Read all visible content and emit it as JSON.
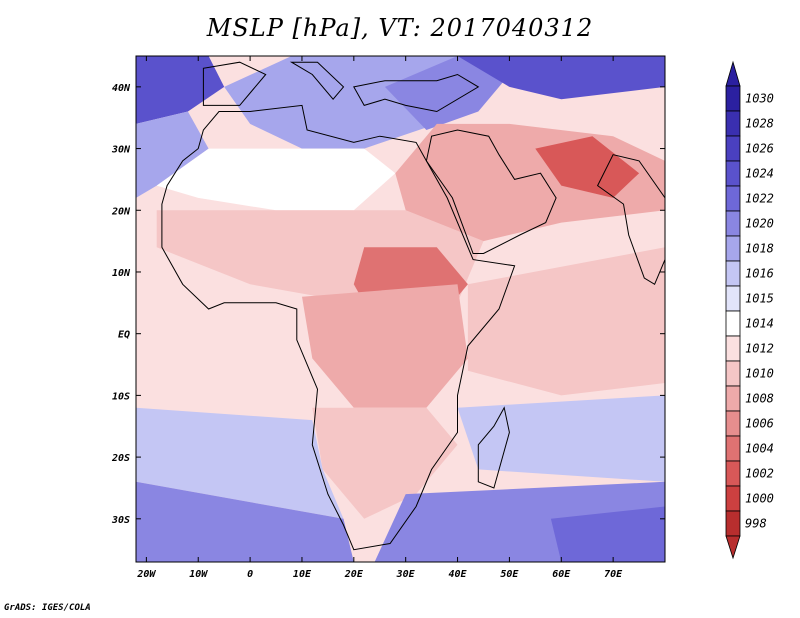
{
  "title": "MSLP [hPa], VT: 2017040312",
  "credit": "GrADS: IGES/COLA",
  "map": {
    "projection": "latlon",
    "lon_range": [
      -22,
      80
    ],
    "lat_range": [
      -37,
      45
    ],
    "field": "Mean sea level pressure",
    "units": "hPa",
    "lat_ticks": [
      {
        "lat": 40,
        "label": "40N"
      },
      {
        "lat": 30,
        "label": "30N"
      },
      {
        "lat": 20,
        "label": "20N"
      },
      {
        "lat": 10,
        "label": "10N"
      },
      {
        "lat": 0,
        "label": "EQ"
      },
      {
        "lat": -10,
        "label": "10S"
      },
      {
        "lat": -20,
        "label": "20S"
      },
      {
        "lat": -30,
        "label": "30S"
      }
    ],
    "lon_ticks": [
      {
        "lon": -20,
        "label": "20W"
      },
      {
        "lon": -10,
        "label": "10W"
      },
      {
        "lon": 0,
        "label": "0"
      },
      {
        "lon": 10,
        "label": "10E"
      },
      {
        "lon": 20,
        "label": "20E"
      },
      {
        "lon": 30,
        "label": "30E"
      },
      {
        "lon": 40,
        "label": "40E"
      },
      {
        "lon": 50,
        "label": "50E"
      },
      {
        "lon": 60,
        "label": "60E"
      },
      {
        "lon": 70,
        "label": "70E"
      }
    ]
  },
  "colorbar": {
    "levels": [
      {
        "label": "1030",
        "color": "#2b20a0"
      },
      {
        "label": "1028",
        "color": "#3a2fb0"
      },
      {
        "label": "1026",
        "color": "#4a40c0"
      },
      {
        "label": "1024",
        "color": "#5a52cc"
      },
      {
        "label": "1022",
        "color": "#6e68d8"
      },
      {
        "label": "1020",
        "color": "#8a86e2"
      },
      {
        "label": "1018",
        "color": "#a6a6ec"
      },
      {
        "label": "1016",
        "color": "#c4c6f4"
      },
      {
        "label": "1015",
        "color": "#e2e4fa"
      },
      {
        "label": "1014",
        "color": "#ffffff"
      },
      {
        "label": "1012",
        "color": "#fbe0e0"
      },
      {
        "label": "1010",
        "color": "#f5c6c6"
      },
      {
        "label": "1008",
        "color": "#eeaaaa"
      },
      {
        "label": "1006",
        "color": "#e68e8e"
      },
      {
        "label": "1004",
        "color": "#df7272"
      },
      {
        "label": "1002",
        "color": "#d85858"
      },
      {
        "label": "1000",
        "color": "#cc4040"
      },
      {
        "label": "998",
        "color": "#b82e2e"
      }
    ],
    "top_arrow_color": "#2b20a0",
    "bottom_arrow_color": "#b82e2e"
  },
  "regions": [
    {
      "name": "north-atlantic-high",
      "color": "#5a52cc",
      "points": [
        [
          -22,
          45
        ],
        [
          -8,
          45
        ],
        [
          -5,
          40
        ],
        [
          -12,
          36
        ],
        [
          -22,
          34
        ]
      ]
    },
    {
      "name": "atlantic-ridge",
      "color": "#a6a6ec",
      "points": [
        [
          -22,
          34
        ],
        [
          -12,
          36
        ],
        [
          -8,
          30
        ],
        [
          -18,
          24
        ],
        [
          -22,
          22
        ]
      ]
    },
    {
      "name": "mediterranean-high",
      "color": "#a6a6ec",
      "points": [
        [
          -5,
          40
        ],
        [
          8,
          45
        ],
        [
          40,
          45
        ],
        [
          36,
          34
        ],
        [
          22,
          30
        ],
        [
          10,
          30
        ],
        [
          0,
          34
        ]
      ]
    },
    {
      "name": "east-med-high",
      "color": "#8a86e2",
      "points": [
        [
          26,
          40
        ],
        [
          40,
          45
        ],
        [
          50,
          42
        ],
        [
          44,
          36
        ],
        [
          34,
          33
        ]
      ]
    },
    {
      "name": "eurasia-high",
      "color": "#5a52cc",
      "points": [
        [
          40,
          45
        ],
        [
          80,
          45
        ],
        [
          80,
          40
        ],
        [
          60,
          38
        ],
        [
          50,
          40
        ]
      ]
    },
    {
      "name": "sahara-white",
      "color": "#ffffff",
      "points": [
        [
          -8,
          30
        ],
        [
          12,
          30
        ],
        [
          22,
          30
        ],
        [
          28,
          26
        ],
        [
          20,
          20
        ],
        [
          5,
          20
        ],
        [
          -10,
          22
        ],
        [
          -18,
          24
        ]
      ]
    },
    {
      "name": "sahel-pink",
      "color": "#f5c6c6",
      "points": [
        [
          -18,
          20
        ],
        [
          5,
          20
        ],
        [
          30,
          20
        ],
        [
          45,
          15
        ],
        [
          40,
          5
        ],
        [
          20,
          5
        ],
        [
          0,
          8
        ],
        [
          -18,
          14
        ]
      ]
    },
    {
      "name": "arabia-low",
      "color": "#eeaaaa",
      "points": [
        [
          36,
          34
        ],
        [
          50,
          34
        ],
        [
          70,
          32
        ],
        [
          80,
          28
        ],
        [
          80,
          20
        ],
        [
          60,
          18
        ],
        [
          45,
          15
        ],
        [
          30,
          20
        ],
        [
          28,
          26
        ]
      ]
    },
    {
      "name": "iran-low",
      "color": "#d85858",
      "points": [
        [
          55,
          30
        ],
        [
          66,
          32
        ],
        [
          75,
          26
        ],
        [
          70,
          22
        ],
        [
          60,
          24
        ]
      ]
    },
    {
      "name": "eastafrica-low",
      "color": "#df7272",
      "points": [
        [
          22,
          14
        ],
        [
          36,
          14
        ],
        [
          42,
          8
        ],
        [
          34,
          0
        ],
        [
          24,
          2
        ],
        [
          20,
          8
        ]
      ]
    },
    {
      "name": "congo-basin",
      "color": "#eeaaaa",
      "points": [
        [
          10,
          6
        ],
        [
          40,
          8
        ],
        [
          42,
          -4
        ],
        [
          34,
          -12
        ],
        [
          20,
          -12
        ],
        [
          12,
          -4
        ]
      ]
    },
    {
      "name": "indian-ocean-pink",
      "color": "#f5c6c6",
      "points": [
        [
          42,
          8
        ],
        [
          80,
          14
        ],
        [
          80,
          -8
        ],
        [
          60,
          -10
        ],
        [
          42,
          -6
        ]
      ]
    },
    {
      "name": "gulf-guinea-pale",
      "color": "#fbe0e0",
      "points": [
        [
          -22,
          8
        ],
        [
          -8,
          6
        ],
        [
          8,
          2
        ],
        [
          10,
          -6
        ],
        [
          14,
          -12
        ],
        [
          -22,
          -10
        ]
      ]
    },
    {
      "name": "south-africa-pink",
      "color": "#f5c6c6",
      "points": [
        [
          12,
          -12
        ],
        [
          34,
          -12
        ],
        [
          40,
          -18
        ],
        [
          32,
          -26
        ],
        [
          22,
          -30
        ],
        [
          14,
          -22
        ]
      ]
    },
    {
      "name": "south-atlantic-ridge",
      "color": "#c4c6f4",
      "points": [
        [
          -22,
          -12
        ],
        [
          12,
          -14
        ],
        [
          14,
          -22
        ],
        [
          18,
          -30
        ],
        [
          -22,
          -24
        ]
      ]
    },
    {
      "name": "south-atlantic-high",
      "color": "#8a86e2",
      "points": [
        [
          -22,
          -24
        ],
        [
          18,
          -30
        ],
        [
          20,
          -37
        ],
        [
          -22,
          -37
        ]
      ]
    },
    {
      "name": "indian-ocean-ridge",
      "color": "#c4c6f4",
      "points": [
        [
          40,
          -12
        ],
        [
          80,
          -10
        ],
        [
          80,
          -24
        ],
        [
          44,
          -22
        ]
      ]
    },
    {
      "name": "mascarene-high",
      "color": "#8a86e2",
      "points": [
        [
          30,
          -26
        ],
        [
          80,
          -24
        ],
        [
          80,
          -37
        ],
        [
          24,
          -37
        ]
      ]
    },
    {
      "name": "mascarene-core",
      "color": "#6e68d8",
      "points": [
        [
          58,
          -30
        ],
        [
          80,
          -28
        ],
        [
          80,
          -37
        ],
        [
          60,
          -37
        ]
      ]
    }
  ],
  "coastlines": [
    {
      "name": "africa",
      "points": [
        [
          -17,
          21
        ],
        [
          -16,
          24
        ],
        [
          -13,
          28
        ],
        [
          -10,
          30
        ],
        [
          -9,
          33
        ],
        [
          -6,
          36
        ],
        [
          0,
          36
        ],
        [
          10,
          37
        ],
        [
          11,
          33
        ],
        [
          20,
          31
        ],
        [
          25,
          32
        ],
        [
          32,
          31
        ],
        [
          34,
          28
        ],
        [
          38,
          22
        ],
        [
          43,
          12
        ],
        [
          51,
          11
        ],
        [
          48,
          4
        ],
        [
          42,
          -2
        ],
        [
          40,
          -10
        ],
        [
          40,
          -16
        ],
        [
          35,
          -22
        ],
        [
          32,
          -28
        ],
        [
          27,
          -34
        ],
        [
          20,
          -35
        ],
        [
          18,
          -31
        ],
        [
          15,
          -26
        ],
        [
          12,
          -18
        ],
        [
          13,
          -9
        ],
        [
          9,
          -1
        ],
        [
          9,
          4
        ],
        [
          5,
          5
        ],
        [
          0,
          5
        ],
        [
          -5,
          5
        ],
        [
          -8,
          4
        ],
        [
          -13,
          8
        ],
        [
          -17,
          14
        ],
        [
          -17,
          21
        ]
      ]
    },
    {
      "name": "madagascar",
      "points": [
        [
          49,
          -12
        ],
        [
          50,
          -16
        ],
        [
          47,
          -25
        ],
        [
          44,
          -24
        ],
        [
          44,
          -18
        ],
        [
          47,
          -15
        ]
      ]
    },
    {
      "name": "arabia",
      "points": [
        [
          34,
          28
        ],
        [
          39,
          22
        ],
        [
          43,
          13
        ],
        [
          45,
          13
        ],
        [
          52,
          16
        ],
        [
          57,
          18
        ],
        [
          59,
          22
        ],
        [
          56,
          26
        ],
        [
          51,
          25
        ],
        [
          48,
          29
        ],
        [
          46,
          32
        ],
        [
          40,
          33
        ],
        [
          35,
          32
        ]
      ]
    },
    {
      "name": "india",
      "points": [
        [
          67,
          24
        ],
        [
          72,
          21
        ],
        [
          73,
          16
        ],
        [
          76,
          9
        ],
        [
          78,
          8
        ],
        [
          80,
          12
        ],
        [
          80,
          22
        ],
        [
          75,
          28
        ],
        [
          70,
          29
        ]
      ]
    },
    {
      "name": "iberia",
      "points": [
        [
          -9,
          37
        ],
        [
          -9,
          43
        ],
        [
          -2,
          44
        ],
        [
          3,
          42
        ],
        [
          0,
          39
        ],
        [
          -2,
          37
        ]
      ]
    },
    {
      "name": "italy",
      "points": [
        [
          8,
          44
        ],
        [
          13,
          44
        ],
        [
          18,
          40
        ],
        [
          16,
          38
        ],
        [
          12,
          42
        ]
      ]
    },
    {
      "name": "turkey-europe",
      "points": [
        [
          20,
          40
        ],
        [
          26,
          41
        ],
        [
          36,
          41
        ],
        [
          40,
          42
        ],
        [
          44,
          40
        ],
        [
          36,
          36
        ],
        [
          30,
          37
        ],
        [
          26,
          38
        ],
        [
          22,
          37
        ]
      ]
    }
  ]
}
